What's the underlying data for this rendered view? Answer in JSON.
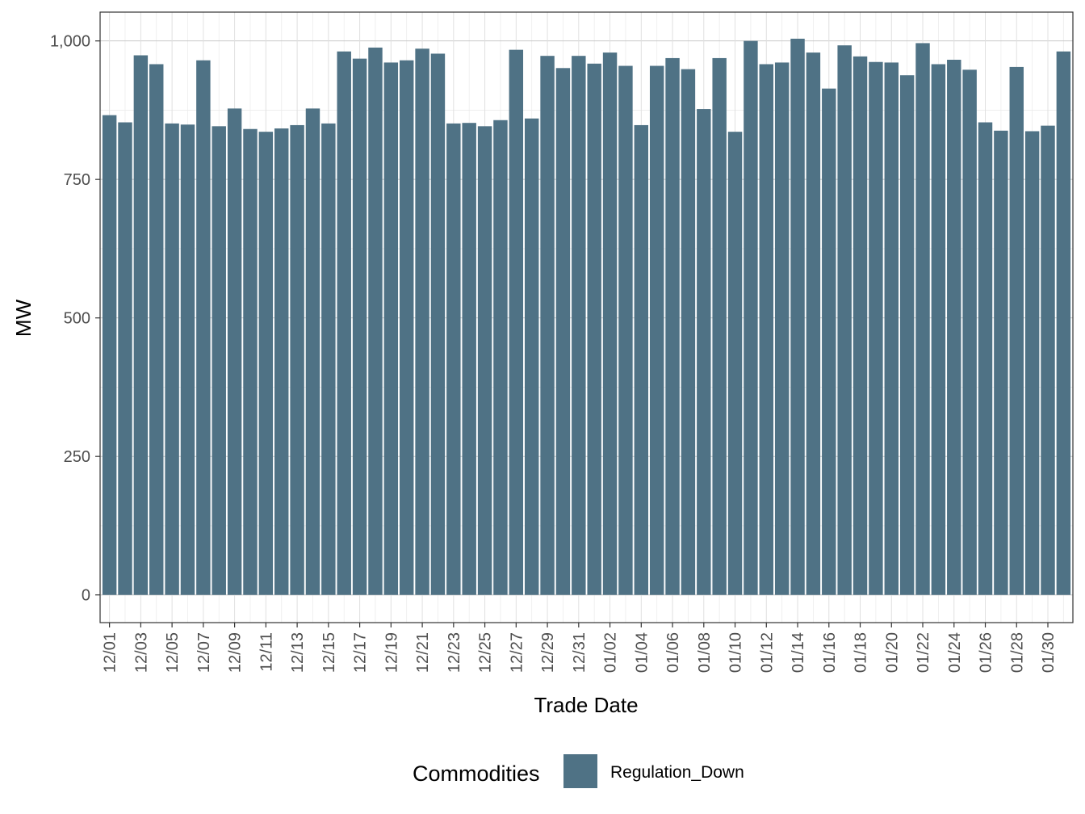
{
  "colors": {
    "bar": "#4f7285",
    "grid_major": "#c8c8c8",
    "grid_minor": "#ececec",
    "panel_border": "#333333",
    "tick": "#333333"
  },
  "chart_data": {
    "type": "bar",
    "title": "",
    "xlabel": "Trade Date",
    "ylabel": "MW",
    "ylim": [
      -50,
      1052
    ],
    "yticks": [
      0,
      250,
      500,
      750,
      1000
    ],
    "ytick_labels": [
      "0",
      "250",
      "500",
      "750",
      "1,000"
    ],
    "legend": {
      "title": "Commodities",
      "entries": [
        "Regulation_Down"
      ],
      "position": "bottom"
    },
    "categories": [
      "12/01",
      "12/02",
      "12/03",
      "12/04",
      "12/05",
      "12/06",
      "12/07",
      "12/08",
      "12/09",
      "12/10",
      "12/11",
      "12/12",
      "12/13",
      "12/14",
      "12/15",
      "12/16",
      "12/17",
      "12/18",
      "12/19",
      "12/20",
      "12/21",
      "12/22",
      "12/23",
      "12/24",
      "12/25",
      "12/26",
      "12/27",
      "12/28",
      "12/29",
      "12/30",
      "12/31",
      "01/01",
      "01/02",
      "01/03",
      "01/04",
      "01/05",
      "01/06",
      "01/07",
      "01/08",
      "01/09",
      "01/10",
      "01/11",
      "01/12",
      "01/13",
      "01/14",
      "01/15",
      "01/16",
      "01/17",
      "01/18",
      "01/19",
      "01/20",
      "01/21",
      "01/22",
      "01/23",
      "01/24",
      "01/25",
      "01/26",
      "01/27",
      "01/28",
      "01/29",
      "01/30",
      "01/31"
    ],
    "xtick_labels": [
      "12/01",
      "12/03",
      "12/05",
      "12/07",
      "12/09",
      "12/11",
      "12/13",
      "12/15",
      "12/17",
      "12/19",
      "12/21",
      "12/23",
      "12/25",
      "12/27",
      "12/29",
      "12/31",
      "01/02",
      "01/04",
      "01/06",
      "01/08",
      "01/10",
      "01/12",
      "01/14",
      "01/16",
      "01/18",
      "01/20",
      "01/22",
      "01/24",
      "01/26",
      "01/28",
      "01/30"
    ],
    "series": [
      {
        "name": "Regulation_Down",
        "values": [
          866,
          853,
          974,
          958,
          851,
          849,
          965,
          846,
          878,
          841,
          836,
          842,
          848,
          878,
          851,
          981,
          968,
          988,
          961,
          965,
          986,
          977,
          851,
          852,
          846,
          857,
          984,
          860,
          973,
          951,
          973,
          959,
          979,
          955,
          848,
          955,
          969,
          949,
          877,
          969,
          836,
          1000,
          958,
          961,
          1004,
          979,
          914,
          992,
          972,
          962,
          961,
          938,
          996,
          958,
          966,
          948,
          853,
          838,
          953,
          837,
          847,
          981
        ]
      }
    ]
  }
}
